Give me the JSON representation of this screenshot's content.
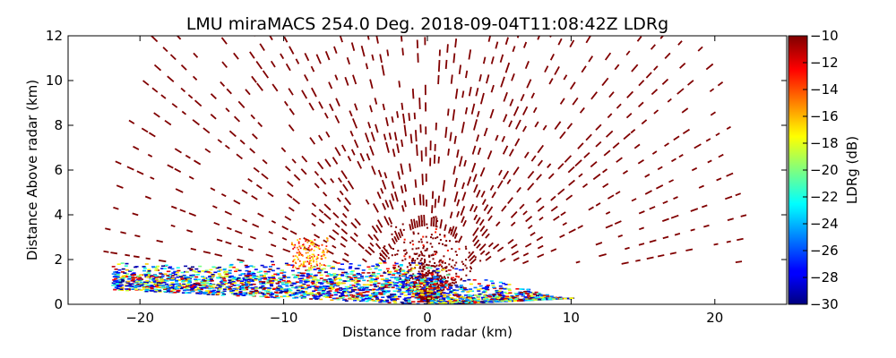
{
  "chart_data": {
    "type": "heatmap",
    "title": "LMU miraMACS 254.0 Deg. 2018-09-04T11:08:42Z  LDRg",
    "xlabel": "Distance from radar (km)",
    "ylabel": "Distance Above radar  (km)",
    "xlim": [
      -25,
      25
    ],
    "ylim": [
      0,
      12
    ],
    "xticks": [
      -20,
      -10,
      0,
      10,
      20
    ],
    "xtick_labels": [
      "−20",
      "−10",
      "0",
      "10",
      "20"
    ],
    "yticks": [
      0,
      2,
      4,
      6,
      8,
      10,
      12
    ],
    "ytick_labels": [
      "0",
      "2",
      "4",
      "6",
      "8",
      "10",
      "12"
    ],
    "grid": false,
    "colorbar": {
      "label": "LDRg (dB)",
      "range": [
        -30,
        -10
      ],
      "ticks": [
        -10,
        -12,
        -14,
        -16,
        -18,
        -20,
        -22,
        -24,
        -26,
        -28,
        -30
      ],
      "tick_labels": [
        "−10",
        "−12",
        "−14",
        "−16",
        "−18",
        "−20",
        "−22",
        "−24",
        "−26",
        "−28",
        "−30"
      ],
      "colormap": "jet"
    },
    "scan": {
      "type": "RHI",
      "azimuth_deg": 254.0,
      "max_range_km": 22.5,
      "elevation_edges_deg": [
        5,
        175
      ]
    },
    "fields": {
      "background_ldr_db": -10,
      "low_layer_top_km": 2.0,
      "low_layer_ldr_range_db": [
        -30,
        -16
      ]
    }
  }
}
